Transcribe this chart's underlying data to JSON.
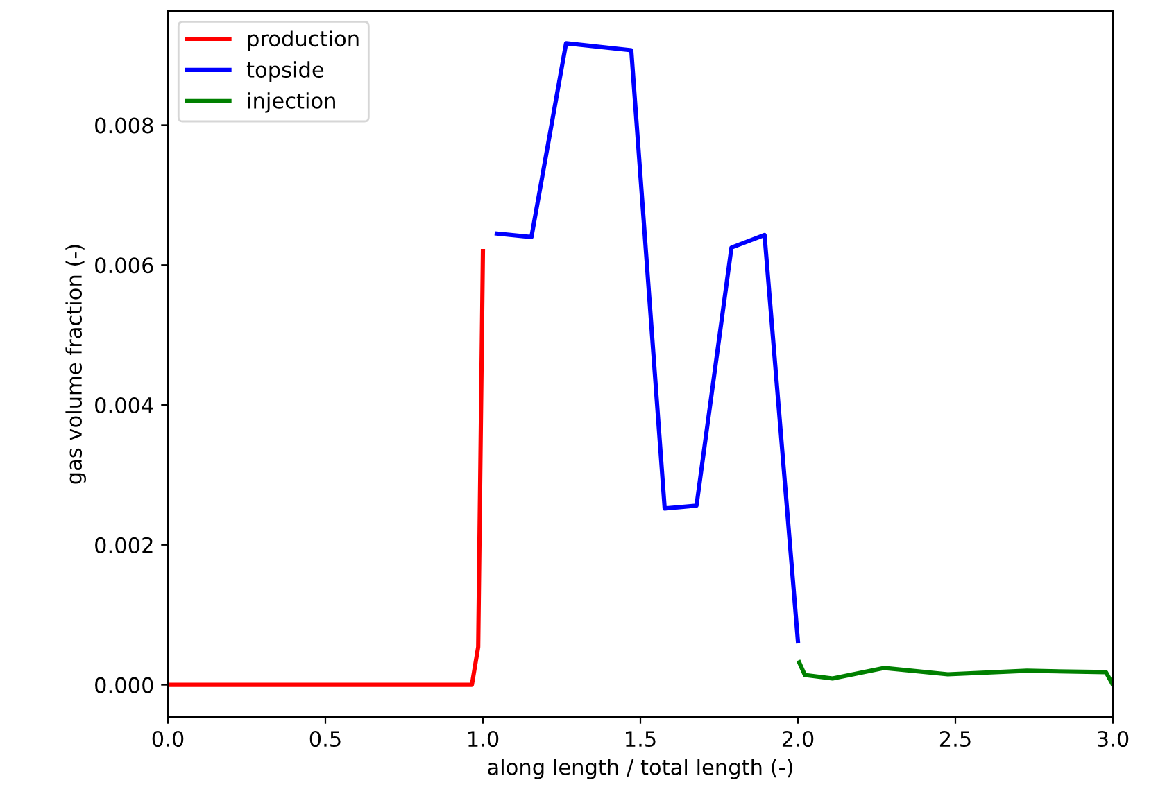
{
  "chart_data": {
    "type": "line",
    "xlabel": "along length / total length (-)",
    "ylabel": "gas volume fraction (-)",
    "xlim": [
      0,
      3
    ],
    "xticks": [
      {
        "value": 0,
        "label": "0.0"
      },
      {
        "value": 0.5,
        "label": "0.5"
      },
      {
        "value": 1,
        "label": "1.0"
      },
      {
        "value": 1.5,
        "label": "1.5"
      },
      {
        "value": 2,
        "label": "2.0"
      },
      {
        "value": 2.5,
        "label": "2.5"
      },
      {
        "value": 3,
        "label": "3.0"
      }
    ],
    "ylim": [
      -0.00046,
      0.00963
    ],
    "yticks": [
      {
        "value": 0,
        "label": "0.000"
      },
      {
        "value": 0.002,
        "label": "0.002"
      },
      {
        "value": 0.004,
        "label": "0.004"
      },
      {
        "value": 0.006,
        "label": "0.006"
      },
      {
        "value": 0.008,
        "label": "0.008"
      }
    ],
    "grid": false,
    "legend": "top left",
    "marker": "none",
    "line_style": "solid",
    "series": [
      {
        "name": "production",
        "color": "#ff0000",
        "x": [
          0,
          0.965,
          0.985,
          1.0
        ],
        "values": [
          0,
          0,
          0.00054,
          0.0062
        ]
      },
      {
        "name": "topside",
        "color": "#0000ff",
        "x": [
          1.044,
          1.154,
          1.264,
          1.471,
          1.577,
          1.678,
          1.789,
          1.894,
          2.0
        ],
        "values": [
          0.00645,
          0.0064,
          0.00917,
          0.00907,
          0.00252,
          0.00256,
          0.00625,
          0.00643,
          0.00062
        ]
      },
      {
        "name": "injection",
        "color": "#008000",
        "x": [
          2.004,
          2.022,
          2.11,
          2.273,
          2.476,
          2.727,
          2.978,
          3.0
        ],
        "values": [
          0.00032,
          0.00014,
          9e-05,
          0.00024,
          0.00015,
          0.0002,
          0.00018,
          0.0
        ]
      }
    ]
  }
}
